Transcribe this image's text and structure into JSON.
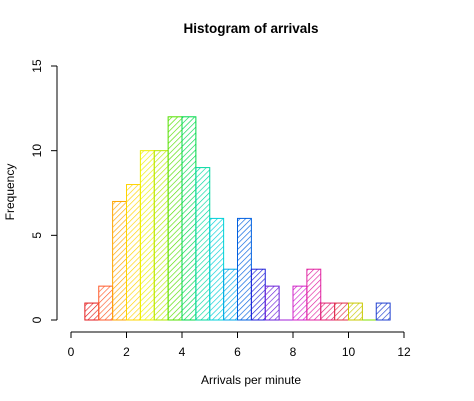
{
  "chart_data": {
    "type": "bar",
    "title": "Histogram of arrivals",
    "xlabel": "Arrivals per minute",
    "ylabel": "Frequency",
    "xlim": [
      0,
      12
    ],
    "ylim": [
      0,
      15
    ],
    "x_ticks": [
      "0",
      "2",
      "4",
      "6",
      "8",
      "10",
      "12"
    ],
    "x_tick_values": [
      0,
      2,
      4,
      6,
      8,
      10,
      12
    ],
    "y_ticks": [
      "0",
      "5",
      "10",
      "15"
    ],
    "y_tick_values": [
      0,
      5,
      10,
      15
    ],
    "bin_width": 0.5,
    "bins": [
      {
        "start": 0.5,
        "end": 1.0,
        "count": 1
      },
      {
        "start": 1.0,
        "end": 1.5,
        "count": 2
      },
      {
        "start": 1.5,
        "end": 2.0,
        "count": 7
      },
      {
        "start": 2.0,
        "end": 2.5,
        "count": 8
      },
      {
        "start": 2.5,
        "end": 3.0,
        "count": 10
      },
      {
        "start": 3.0,
        "end": 3.5,
        "count": 10
      },
      {
        "start": 3.5,
        "end": 4.0,
        "count": 12
      },
      {
        "start": 4.0,
        "end": 4.5,
        "count": 12
      },
      {
        "start": 4.5,
        "end": 5.0,
        "count": 9
      },
      {
        "start": 5.0,
        "end": 5.5,
        "count": 6
      },
      {
        "start": 5.5,
        "end": 6.0,
        "count": 3
      },
      {
        "start": 6.0,
        "end": 6.5,
        "count": 6
      },
      {
        "start": 6.5,
        "end": 7.0,
        "count": 3
      },
      {
        "start": 7.0,
        "end": 7.5,
        "count": 2
      },
      {
        "start": 7.5,
        "end": 8.0,
        "count": 0
      },
      {
        "start": 8.0,
        "end": 8.5,
        "count": 2
      },
      {
        "start": 8.5,
        "end": 9.0,
        "count": 3
      },
      {
        "start": 9.0,
        "end": 9.5,
        "count": 1
      },
      {
        "start": 9.5,
        "end": 10.0,
        "count": 1
      },
      {
        "start": 10.0,
        "end": 10.5,
        "count": 1
      },
      {
        "start": 10.5,
        "end": 11.0,
        "count": 0
      },
      {
        "start": 11.0,
        "end": 11.5,
        "count": 1
      }
    ],
    "colors": [
      "#e31a1c",
      "#ff5a2a",
      "#ffa500",
      "#ffd400",
      "#eef000",
      "#b6e800",
      "#55e000",
      "#00d84a",
      "#00d8a0",
      "#00d0d8",
      "#00a8e8",
      "#0060e0",
      "#2020d8",
      "#6a20d8",
      "#a020d8",
      "#d020c8",
      "#e020a0",
      "#e02070",
      "#e0304a",
      "#c8c800",
      "#80e000",
      "#2040d0"
    ],
    "grid": false,
    "legend": "none",
    "fill": "diagonal-hatch"
  }
}
